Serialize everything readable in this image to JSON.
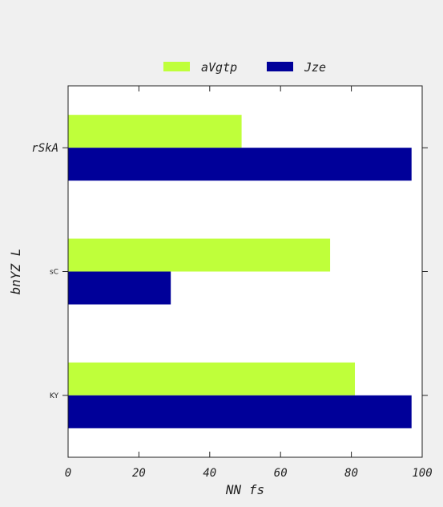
{
  "chart_data": {
    "type": "bar",
    "orientation": "horizontal",
    "categories": [
      "rSkA",
      "sC",
      "KY"
    ],
    "series": [
      {
        "name": "aVgtp",
        "color": "#bfff3a",
        "values": [
          49,
          74,
          81
        ]
      },
      {
        "name": "Jze",
        "color": "#000099",
        "values": [
          97,
          29,
          97
        ]
      }
    ],
    "xlabel": "NN fs",
    "ylabel": "bnYZ L",
    "xlim": [
      0,
      100
    ],
    "xticks": [
      0,
      20,
      40,
      60,
      80,
      100
    ],
    "grid": false,
    "legend_position": "top-center"
  }
}
